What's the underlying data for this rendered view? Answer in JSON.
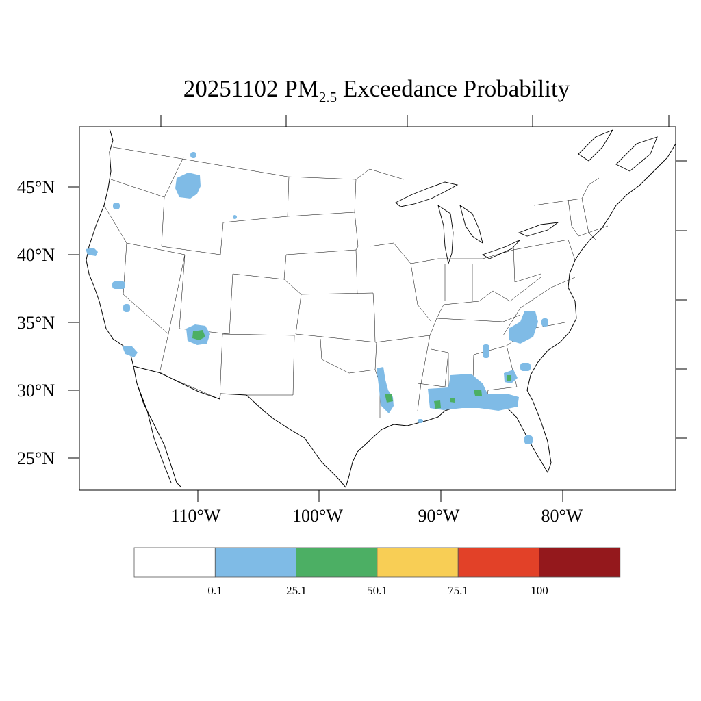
{
  "map": {
    "title_prefix": "20251102 PM",
    "title_subscript": "2.5",
    "title_suffix": " Exceedance Probability",
    "lat_labels": [
      "45°N",
      "40°N",
      "35°N",
      "30°N",
      "25°N"
    ],
    "lon_labels": [
      "110°W",
      "100°W",
      "90°W",
      "80°W"
    ],
    "probability_areas": [
      {
        "region": "northern Idaho / western Montana",
        "max_category": "0.1-25.1"
      },
      {
        "region": "northern Arizona",
        "max_category": "25.1-50.1"
      },
      {
        "region": "northern California coast",
        "max_category": "0.1-25.1"
      },
      {
        "region": "central California",
        "max_category": "0.1-25.1"
      },
      {
        "region": "southern California",
        "max_category": "0.1-25.1"
      },
      {
        "region": "Oregon",
        "max_category": "0.1-25.1"
      },
      {
        "region": "eastern Texas / Louisiana border",
        "max_category": "25.1-50.1"
      },
      {
        "region": "Mississippi / Alabama / Florida panhandle",
        "max_category": "25.1-50.1"
      },
      {
        "region": "Georgia",
        "max_category": "25.1-50.1"
      },
      {
        "region": "South Carolina / North Carolina",
        "max_category": "0.1-25.1"
      },
      {
        "region": "central Florida",
        "max_category": "0.1-25.1"
      }
    ]
  },
  "legend": {
    "tick_labels": [
      "0.1",
      "25.1",
      "50.1",
      "75.1",
      "100"
    ],
    "colors": [
      "#ffffff",
      "#7fbbe6",
      "#4caf64",
      "#f8ce55",
      "#e24128",
      "#94181c"
    ]
  }
}
